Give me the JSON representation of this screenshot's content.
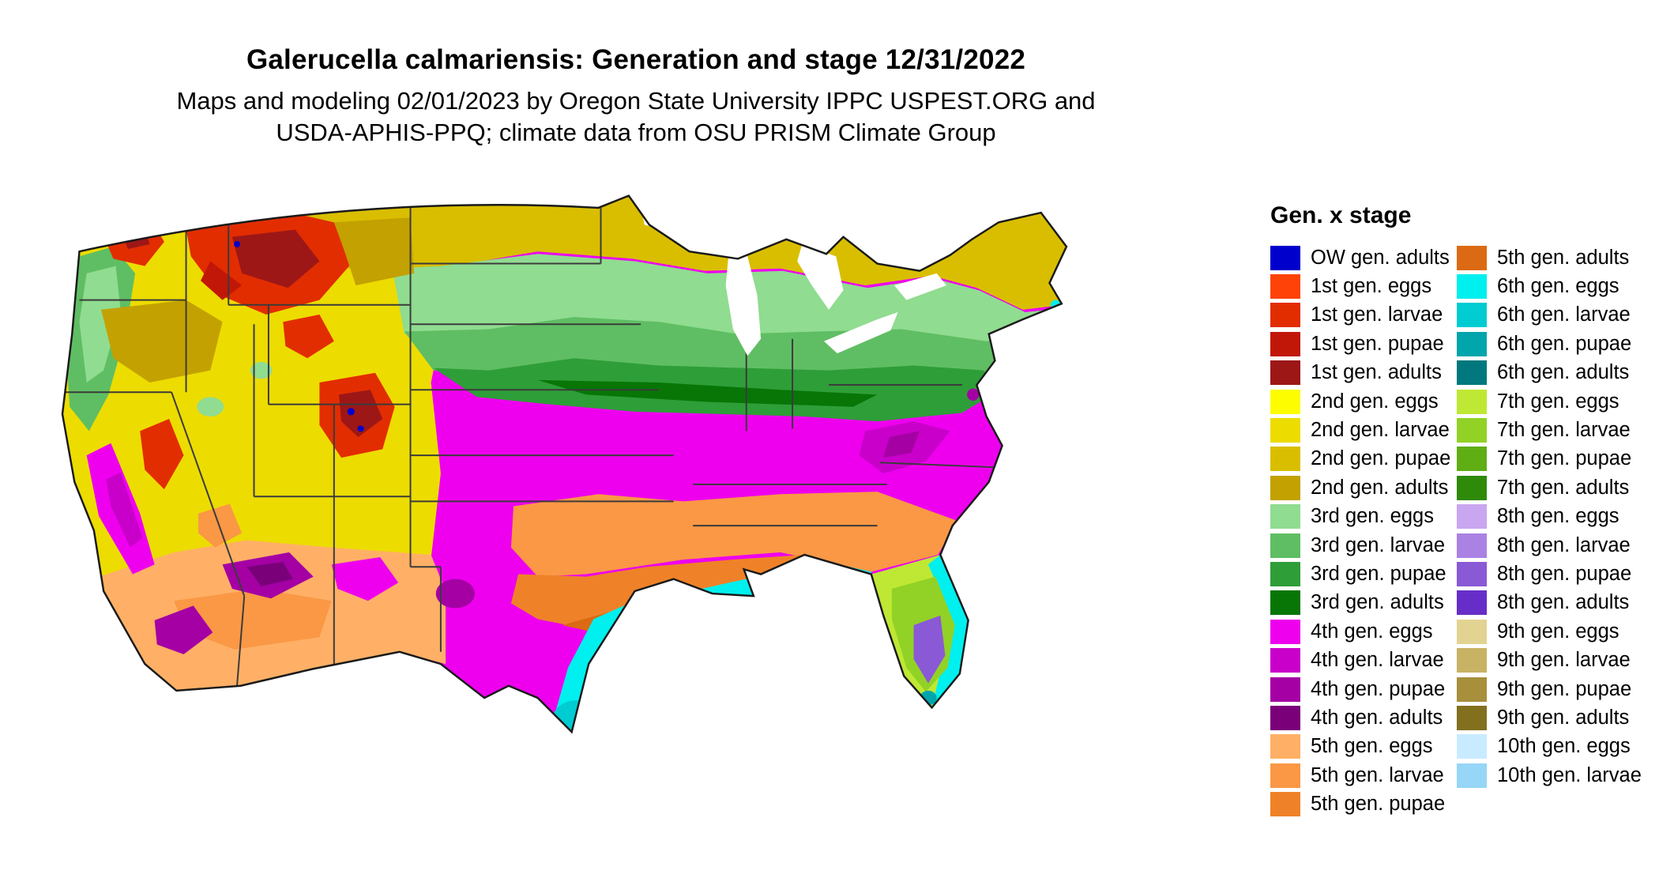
{
  "header": {
    "title": "Galerucella calmariensis: Generation and stage 12/31/2022",
    "subtitle_line1": "Maps and modeling 02/01/2023 by Oregon State University IPPC USPEST.ORG and",
    "subtitle_line2": "USDA-APHIS-PPQ; climate data from OSU PRISM Climate Group"
  },
  "legend": {
    "title": "Gen. x stage",
    "columns": [
      {
        "items": [
          {
            "label": "OW gen. adults",
            "color": "#0000CC"
          },
          {
            "label": "1st gen. eggs",
            "color": "#FF4208"
          },
          {
            "label": "1st gen. larvae",
            "color": "#E22D00"
          },
          {
            "label": "1st gen. pupae",
            "color": "#C11708"
          },
          {
            "label": "1st gen. adults",
            "color": "#9D1717"
          },
          {
            "label": "2nd gen. eggs",
            "color": "#FDFD00"
          },
          {
            "label": "2nd gen. larvae",
            "color": "#EDDC00"
          },
          {
            "label": "2nd gen. pupae",
            "color": "#D9BE00"
          },
          {
            "label": "2nd gen. adults",
            "color": "#C3A100"
          },
          {
            "label": "3rd gen. eggs",
            "color": "#90DC90"
          },
          {
            "label": "3rd gen. larvae",
            "color": "#5FBE63"
          },
          {
            "label": "3rd gen. pupae",
            "color": "#2E9E38"
          },
          {
            "label": "3rd gen. adults",
            "color": "#077607"
          },
          {
            "label": "4th gen. eggs",
            "color": "#EE00EE"
          },
          {
            "label": "4th gen. larvae",
            "color": "#C900C9"
          },
          {
            "label": "4th gen. pupae",
            "color": "#A400A4"
          },
          {
            "label": "4th gen. adults",
            "color": "#7A007A"
          },
          {
            "label": "5th gen. eggs",
            "color": "#FFB066"
          },
          {
            "label": "5th gen. larvae",
            "color": "#FA9845"
          },
          {
            "label": "5th gen. pupae",
            "color": "#EF8228"
          }
        ]
      },
      {
        "items": [
          {
            "label": "5th gen. adults",
            "color": "#DC6A14"
          },
          {
            "label": "6th gen. eggs",
            "color": "#00EFEF"
          },
          {
            "label": "6th gen. larvae",
            "color": "#00CCD2"
          },
          {
            "label": "6th gen. pupae",
            "color": "#00A6AC"
          },
          {
            "label": "6th gen. adults",
            "color": "#00787E"
          },
          {
            "label": "7th gen. eggs",
            "color": "#BEE833"
          },
          {
            "label": "7th gen. larvae",
            "color": "#92D226"
          },
          {
            "label": "7th gen. pupae",
            "color": "#5FAE14"
          },
          {
            "label": "7th gen. adults",
            "color": "#2F8A0A"
          },
          {
            "label": "8th gen. eggs",
            "color": "#C9A6F0"
          },
          {
            "label": "8th gen. larvae",
            "color": "#AA82E4"
          },
          {
            "label": "8th gen. pupae",
            "color": "#8A59D6"
          },
          {
            "label": "8th gen. adults",
            "color": "#672DC8"
          },
          {
            "label": "9th gen. eggs",
            "color": "#E2D392"
          },
          {
            "label": "9th gen. larvae",
            "color": "#C8B264"
          },
          {
            "label": "9th gen. pupae",
            "color": "#A78F3B"
          },
          {
            "label": "9th gen. adults",
            "color": "#82701F"
          },
          {
            "label": "10th gen. eggs",
            "color": "#C9EBFF"
          },
          {
            "label": "10th gen. larvae",
            "color": "#96D6F6"
          }
        ]
      }
    ]
  },
  "map": {
    "region": "Continental United States",
    "border_color": "#1a1a1a",
    "state_line_color": "#3b3b3b",
    "water_color": "#FFFFFF"
  }
}
